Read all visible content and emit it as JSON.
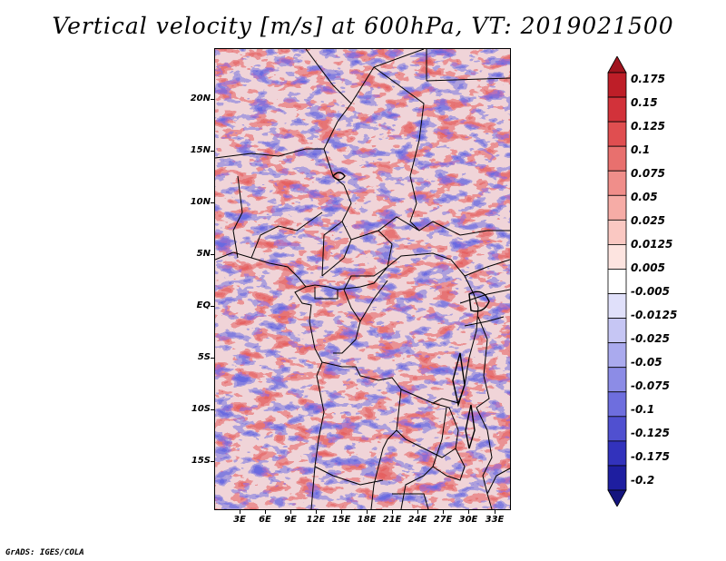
{
  "title": "Vertical velocity [m/s] at 600hPa, VT: 2019021500",
  "footer": "GrADS: IGES/COLA",
  "map": {
    "variable": "Vertical velocity",
    "units": "m/s",
    "level": "600hPa",
    "valid_time": "2019021500",
    "lat_labels": [
      "20N",
      "15N",
      "10N",
      "5N",
      "EQ",
      "5S",
      "10S",
      "15S"
    ],
    "lon_labels": [
      "3E",
      "6E",
      "9E",
      "12E",
      "15E",
      "18E",
      "21E",
      "24E",
      "27E",
      "30E",
      "33E"
    ]
  },
  "colorbar": {
    "labels": [
      "0.175",
      "0.15",
      "0.125",
      "0.1",
      "0.075",
      "0.05",
      "0.025",
      "0.0125",
      "0.005",
      "-0.005",
      "-0.0125",
      "-0.025",
      "-0.05",
      "-0.075",
      "-0.1",
      "-0.125",
      "-0.175",
      "-0.2"
    ],
    "colors": [
      "#a0141e",
      "#be1e28",
      "#d2323a",
      "#e04e50",
      "#e8706e",
      "#f08e8a",
      "#f6aca6",
      "#fac8c2",
      "#fde4e0",
      "#ffffff",
      "#e0e0fa",
      "#c6c6f4",
      "#aaaaee",
      "#8c8ce6",
      "#6e6ede",
      "#5050d0",
      "#3232bc",
      "#1e1ea0",
      "#14147e"
    ]
  }
}
